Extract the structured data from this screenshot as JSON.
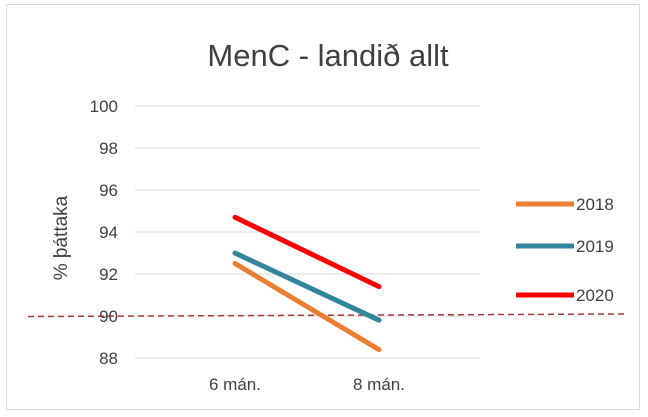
{
  "chart_data": {
    "type": "line",
    "title": "MenC - landið allt",
    "ylabel": "% þáttaka",
    "xlabel": "",
    "categories": [
      "6 mán.",
      "8 mán."
    ],
    "ylim": [
      88,
      100
    ],
    "yticks": [
      88,
      90,
      92,
      94,
      96,
      98,
      100
    ],
    "grid": true,
    "legend": "right",
    "reference_line": {
      "y": 90,
      "style": "dashed",
      "color": "#a33a3a"
    },
    "series": [
      {
        "name": "2018",
        "values": [
          92.5,
          88.4
        ],
        "color": "#ed7d31"
      },
      {
        "name": "2019",
        "values": [
          93.0,
          89.8
        ],
        "color": "#31859c"
      },
      {
        "name": "2020",
        "values": [
          94.7,
          91.4
        ],
        "color": "#ff0000"
      }
    ]
  }
}
